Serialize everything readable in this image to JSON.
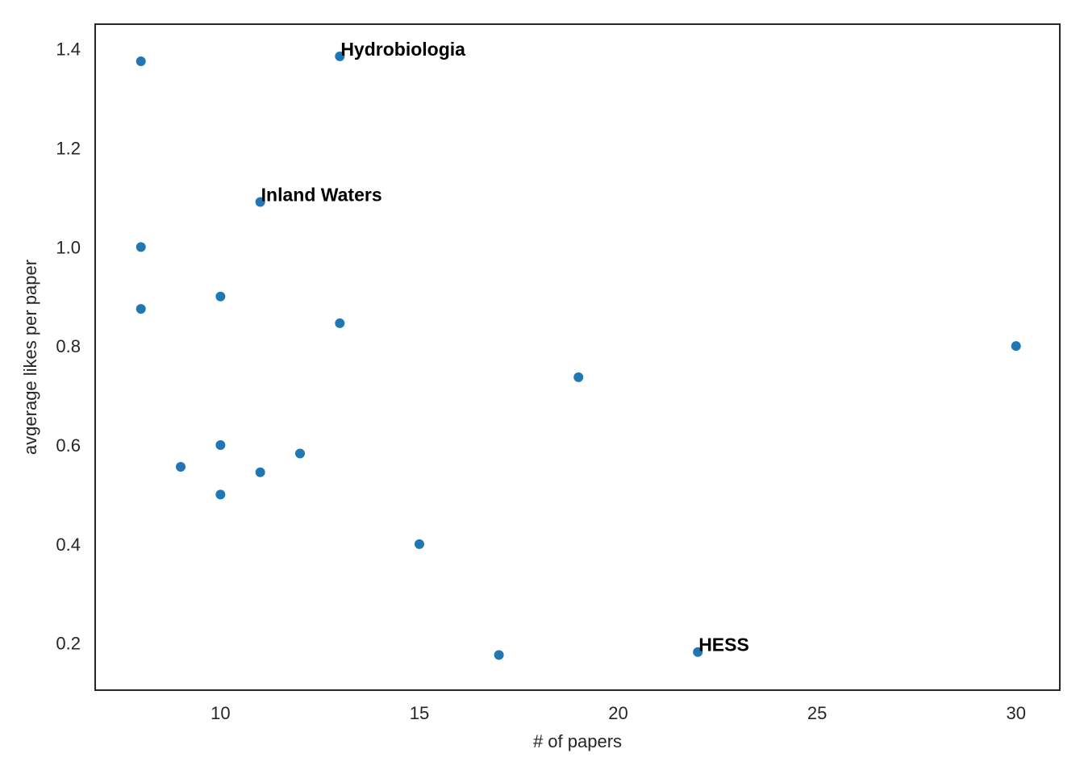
{
  "chart_data": {
    "type": "scatter",
    "title": "",
    "xlabel": "# of papers",
    "ylabel": "avgerage likes per paper",
    "xlim": [
      6.85,
      31.1
    ],
    "ylim": [
      0.105,
      1.45
    ],
    "xticks": [
      10,
      15,
      20,
      25,
      30
    ],
    "yticks": [
      0.2,
      0.4,
      0.6,
      0.8,
      1.0,
      1.2,
      1.4
    ],
    "xtick_labels": [
      "10",
      "15",
      "20",
      "25",
      "30"
    ],
    "ytick_labels": [
      "0.2",
      "0.4",
      "0.6",
      "0.8",
      "1.0",
      "1.2",
      "1.4"
    ],
    "grid": false,
    "marker_color": "#1f77b4",
    "points": [
      {
        "x": 8,
        "y": 1.375
      },
      {
        "x": 13,
        "y": 1.385,
        "label": "Hydrobiologia"
      },
      {
        "x": 11,
        "y": 1.091,
        "label": "Inland Waters"
      },
      {
        "x": 8,
        "y": 1.0
      },
      {
        "x": 10,
        "y": 0.9
      },
      {
        "x": 8,
        "y": 0.875
      },
      {
        "x": 13,
        "y": 0.846
      },
      {
        "x": 30,
        "y": 0.8
      },
      {
        "x": 19,
        "y": 0.737
      },
      {
        "x": 10,
        "y": 0.6
      },
      {
        "x": 12,
        "y": 0.583
      },
      {
        "x": 9,
        "y": 0.556
      },
      {
        "x": 11,
        "y": 0.545
      },
      {
        "x": 10,
        "y": 0.5
      },
      {
        "x": 15,
        "y": 0.4
      },
      {
        "x": 17,
        "y": 0.176
      },
      {
        "x": 22,
        "y": 0.182,
        "label": "HESS"
      }
    ]
  }
}
